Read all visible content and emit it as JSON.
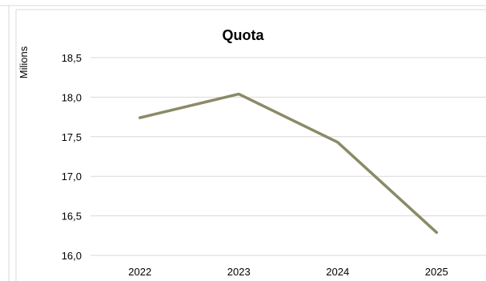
{
  "chart_data": {
    "type": "line",
    "title": "Quota",
    "ylabel": "Milions",
    "xlabel": "",
    "categories": [
      "2022",
      "2023",
      "2024",
      "2025"
    ],
    "series": [
      {
        "values": [
          17.74,
          18.04,
          17.43,
          16.29
        ],
        "color": "#8b8a68"
      }
    ],
    "ylim": [
      16.0,
      18.5
    ],
    "ytick_labels": [
      "16,0",
      "16,5",
      "17,0",
      "17,5",
      "18,0",
      "18,5"
    ],
    "grid": true
  }
}
